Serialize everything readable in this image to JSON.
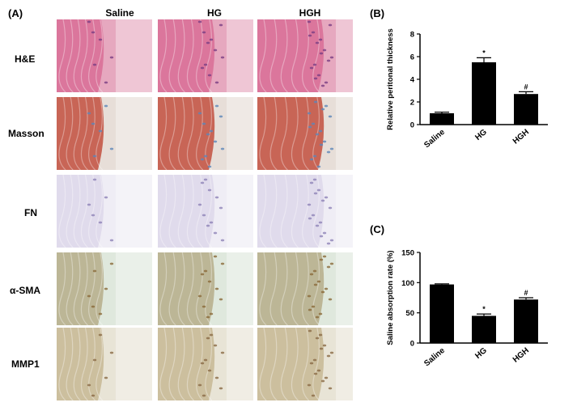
{
  "panel_a": {
    "letter": "(A)",
    "columns": [
      "Saline",
      "HG",
      "HGH"
    ],
    "rows": [
      "H&E",
      "Masson",
      "FN",
      "α-SMA",
      "MMP1"
    ]
  },
  "panel_b": {
    "letter": "(B)"
  },
  "panel_c": {
    "letter": "(C)"
  },
  "stains": {
    "H&E": {
      "bg": "#e6a8bf",
      "band": "#d86d95",
      "accent": "#7a3f83"
    },
    "Masson": {
      "bg": "#e7ded8",
      "band": "#c2503f",
      "accent": "#5d86b9"
    },
    "FN": {
      "bg": "#efedf5",
      "band": "#ddd7ea",
      "accent": "#8f83b8"
    },
    "α-SMA": {
      "bg": "#dfe8dd",
      "band": "#b6ad8a",
      "accent": "#8a6a3a"
    },
    "MMP1": {
      "bg": "#e8e4d6",
      "band": "#c7b894",
      "accent": "#8a6a45"
    }
  },
  "chart_data": [
    {
      "type": "bar",
      "categories": [
        "Saline",
        "HG",
        "HGH"
      ],
      "values": [
        1.0,
        5.5,
        2.7
      ],
      "errors": [
        0.1,
        0.4,
        0.2
      ],
      "annotations": [
        "",
        "*",
        "#"
      ],
      "ylabel": "Relative peritonal thickness",
      "ylim": [
        0,
        8
      ],
      "yticks": [
        "0",
        "2",
        "4",
        "6",
        "8"
      ],
      "bar_color": "#000000"
    },
    {
      "type": "bar",
      "categories": [
        "Saline",
        "HG",
        "HGH"
      ],
      "values": [
        97,
        45,
        72
      ],
      "errors": [
        1,
        3,
        3
      ],
      "annotations": [
        "",
        "*",
        "#"
      ],
      "ylabel": "Saline absorption rate (%)",
      "ylim": [
        0,
        150
      ],
      "yticks": [
        "0",
        "50",
        "100",
        "150"
      ],
      "bar_color": "#000000"
    }
  ]
}
